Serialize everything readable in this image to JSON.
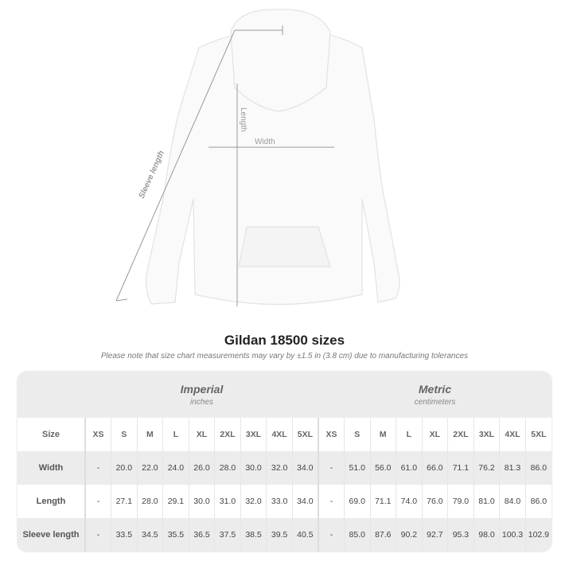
{
  "illustration": {
    "labels": {
      "sleeve": "Sleeve length",
      "length": "Length",
      "width": "Width"
    }
  },
  "title": "Gildan 18500 sizes",
  "note": "Please note that size chart measurements may vary by ±1.5 in (3.8 cm) due to manufacturing tolerances",
  "table": {
    "imperial": {
      "name": "Imperial",
      "unit": "inches"
    },
    "metric": {
      "name": "Metric",
      "unit": "centimeters"
    },
    "size_label": "Size",
    "sizes": [
      "XS",
      "S",
      "M",
      "L",
      "XL",
      "2XL",
      "3XL",
      "4XL",
      "5XL"
    ],
    "rows": [
      {
        "label": "Width",
        "imperial": [
          "-",
          "20.0",
          "22.0",
          "24.0",
          "26.0",
          "28.0",
          "30.0",
          "32.0",
          "34.0"
        ],
        "metric": [
          "-",
          "51.0",
          "56.0",
          "61.0",
          "66.0",
          "71.1",
          "76.2",
          "81.3",
          "86.0"
        ]
      },
      {
        "label": "Length",
        "imperial": [
          "-",
          "27.1",
          "28.0",
          "29.1",
          "30.0",
          "31.0",
          "32.0",
          "33.0",
          "34.0"
        ],
        "metric": [
          "-",
          "69.0",
          "71.1",
          "74.0",
          "76.0",
          "79.0",
          "81.0",
          "84.0",
          "86.0"
        ]
      },
      {
        "label": "Sleeve length",
        "imperial": [
          "-",
          "33.5",
          "34.5",
          "35.5",
          "36.5",
          "37.5",
          "38.5",
          "39.5",
          "40.5"
        ],
        "metric": [
          "-",
          "85.0",
          "87.6",
          "90.2",
          "92.7",
          "95.3",
          "98.0",
          "100.3",
          "102.9"
        ]
      }
    ]
  }
}
